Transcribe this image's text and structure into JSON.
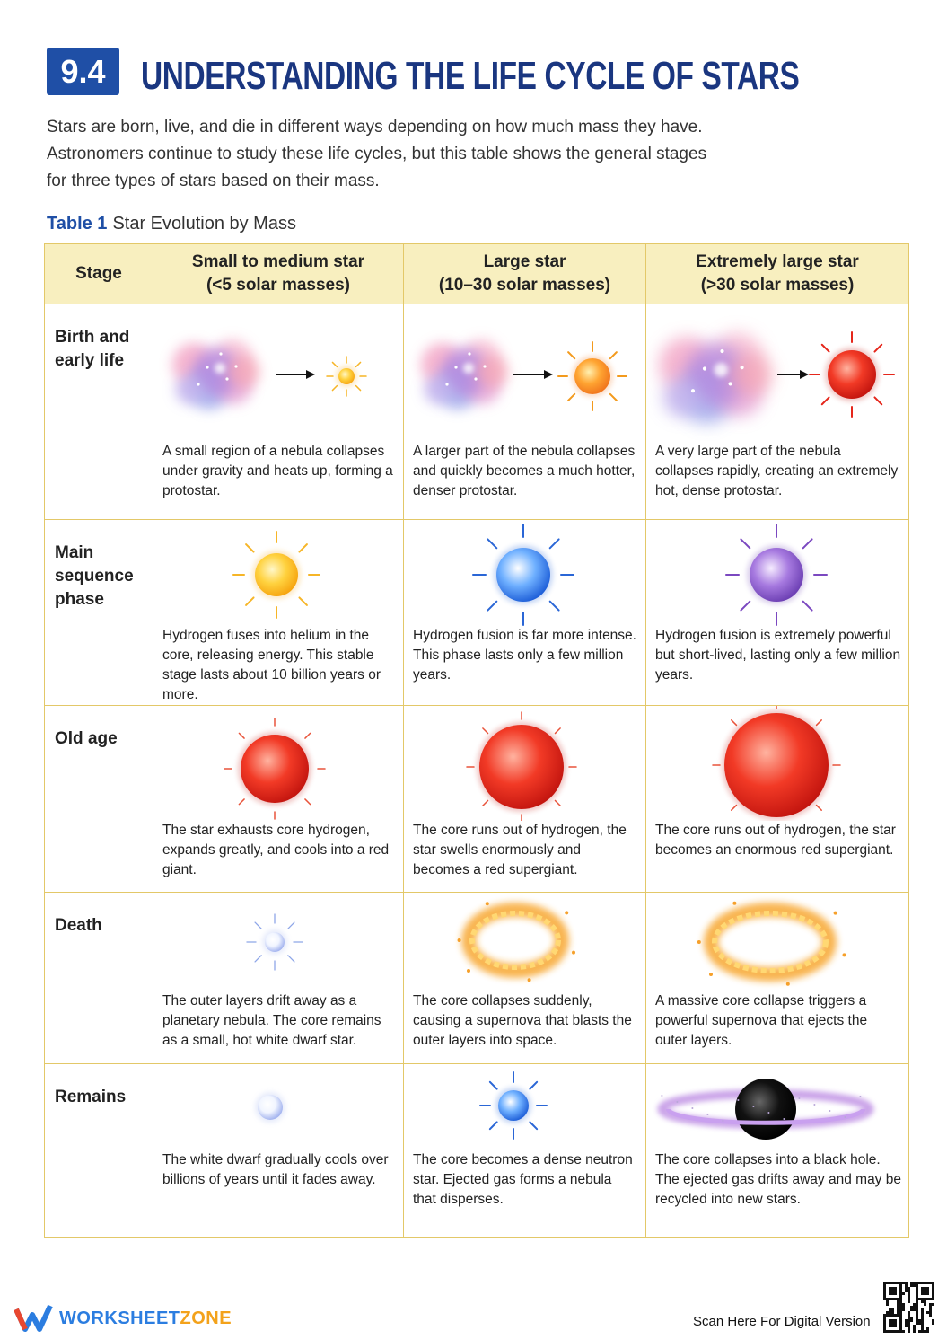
{
  "header": {
    "badge": "9.4",
    "title": "UNDERSTANDING THE LIFE CYCLE OF STARS"
  },
  "intro": [
    "Stars are born, live, and die in different ways depending on how much mass they have.",
    "Astronomers continue to study these life cycles, but this table shows the general stages",
    "for three types of stars based on their mass."
  ],
  "table": {
    "label": "Table 1",
    "caption": "Star Evolution by Mass",
    "stage_header": "Stage",
    "columns": [
      {
        "name": "Small to medium star",
        "mass": "(<5 solar masses)"
      },
      {
        "name": "Large star",
        "mass": "(10–30 solar masses)"
      },
      {
        "name": "Extremely large star",
        "mass": "(>30 solar masses)"
      }
    ],
    "rows": [
      {
        "stage": "Birth and early life",
        "cells": [
          "A small region of a nebula collapses under gravity and heats up, forming a protostar.",
          "A larger part of the nebula collapses and quickly becomes a much hotter, denser protostar.",
          "A very large part of the nebula collapses rapidly, creating an extremely hot, dense protostar."
        ]
      },
      {
        "stage": "Main sequence phase",
        "cells": [
          "Hydrogen fuses into helium in the core, releasing energy. This stable stage lasts about 10 billion years or more.",
          "Hydrogen fusion is far more intense. This phase lasts only a few million years.",
          "Hydrogen fusion is extremely powerful but short-lived, lasting only a few million years."
        ]
      },
      {
        "stage": "Old age",
        "cells": [
          "The star exhausts core hydrogen, expands greatly, and cools into a red giant.",
          "The core runs out of hydrogen, the star swells enormously and becomes a red supergiant.",
          "The core runs out of hydrogen, the star becomes an enormous red supergiant."
        ]
      },
      {
        "stage": "Death",
        "cells": [
          "The outer layers drift away as a planetary nebula. The core remains as a small, hot white dwarf star.",
          "The core collapses suddenly, causing a supernova that blasts the outer layers into space.",
          "A massive core collapse triggers a powerful supernova that ejects the outer layers."
        ]
      },
      {
        "stage": "Remains",
        "cells": [
          "The white dwarf gradually cools over billions of years until it fades away.",
          "The core becomes a dense neutron star. Ejected gas forms a nebula that disperses.",
          "The core collapses into a black hole. The ejected gas drifts away and may be recycled into new stars."
        ]
      }
    ]
  },
  "footer": {
    "brand_a": "WORKSHEET",
    "brand_b": "ZONE",
    "scan": "Scan Here For Digital Version"
  }
}
